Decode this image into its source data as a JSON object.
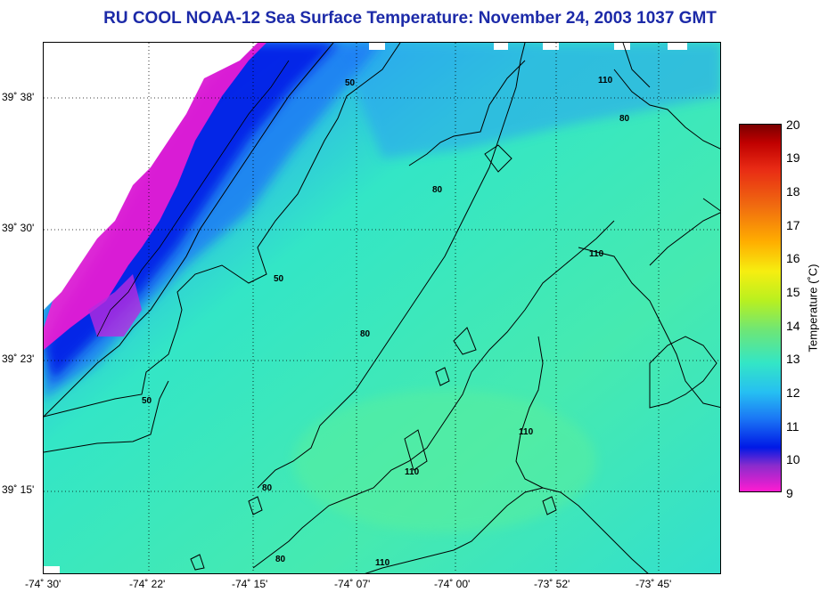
{
  "title": "RU COOL  NOAA-12  Sea Surface Temperature:  November 24, 2003 1037 GMT",
  "map": {
    "lat_ticks": [
      "39˚ 38'",
      "39˚ 30'",
      "39˚ 23'",
      "39˚ 15'"
    ],
    "lon_ticks": [
      "-74˚ 30'",
      "-74˚ 22'",
      "-74˚ 15'",
      "-74˚ 07'",
      "-74˚ 00'",
      "-73˚ 52'",
      "-73˚ 45'"
    ],
    "contour_labels": [
      "50",
      "50",
      "50",
      "80",
      "80",
      "80",
      "80",
      "80",
      "110",
      "110",
      "110",
      "110",
      "110"
    ],
    "colors": {
      "land": "#ffffff",
      "ocean_warm": "#46eab0",
      "ocean_mid": "#33e6c6",
      "ocean_cool": "#1b78f5",
      "ocean_cold": "#0019e6",
      "coastal": "#ff1bd1"
    }
  },
  "colorbar": {
    "label": "Temperature (˚C)",
    "min": 9,
    "max": 20,
    "ticks": [
      "20",
      "19",
      "18",
      "17",
      "16",
      "15",
      "14",
      "13",
      "12",
      "11",
      "10",
      "9"
    ]
  }
}
